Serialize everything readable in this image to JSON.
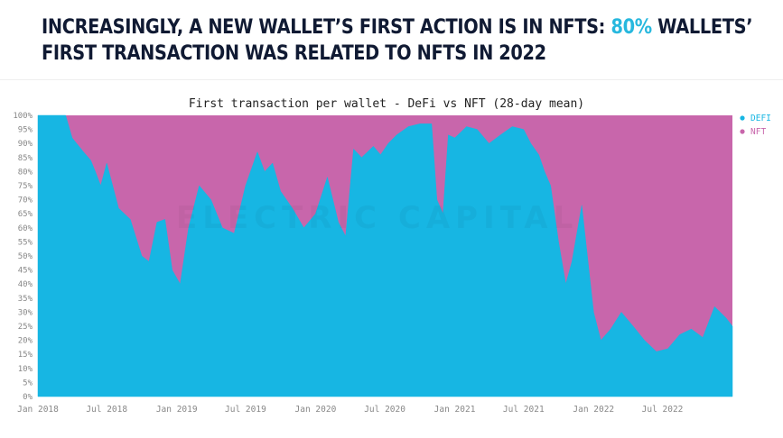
{
  "headline": {
    "line1_prefix": "INCREASINGLY, A NEW WALLET’S FIRST ACTION IS IN NFTS: ",
    "line1_accent": "80%",
    "line1_suffix": " WALLETS’",
    "line2": "FIRST TRANSACTION WAS RELATED TO NFTS IN 2022"
  },
  "watermark": "ELECTRIC CAPITAL",
  "colors": {
    "defi": "#17b6e3",
    "nft": "#c866ab",
    "accent": "#27b8de",
    "text": "#101a33"
  },
  "chart_data": {
    "type": "area",
    "title": "First transaction per wallet - DeFi vs NFT (28-day mean)",
    "stacked_percent": true,
    "ylim": [
      0,
      100
    ],
    "y_ticks": [
      "0%",
      "5%",
      "10%",
      "15%",
      "20%",
      "25%",
      "30%",
      "35%",
      "40%",
      "45%",
      "50%",
      "55%",
      "60%",
      "65%",
      "70%",
      "75%",
      "80%",
      "85%",
      "90%",
      "95%",
      "100%"
    ],
    "x_ticks": [
      "Jan 2018",
      "Jul 2018",
      "Jan 2019",
      "Jul 2019",
      "Jan 2020",
      "Jul 2020",
      "Jan 2021",
      "Jul 2021",
      "Jan 2022",
      "Jul 2022"
    ],
    "grid": false,
    "legend_position": "top-right",
    "series": [
      {
        "name": "DEFI",
        "color": "#17b6e3"
      },
      {
        "name": "NFT",
        "color": "#c866ab"
      }
    ],
    "defi_share": {
      "dates": [
        "2018-01-01",
        "2018-03-15",
        "2018-04-01",
        "2018-05-01",
        "2018-05-20",
        "2018-06-01",
        "2018-06-15",
        "2018-07-01",
        "2018-08-01",
        "2018-09-01",
        "2018-10-01",
        "2018-10-20",
        "2018-11-10",
        "2018-12-01",
        "2018-12-20",
        "2019-01-10",
        "2019-02-01",
        "2019-03-01",
        "2019-04-01",
        "2019-05-01",
        "2019-06-01",
        "2019-07-01",
        "2019-08-01",
        "2019-08-20",
        "2019-09-10",
        "2019-10-01",
        "2019-11-01",
        "2019-12-01",
        "2020-01-01",
        "2020-02-01",
        "2020-03-01",
        "2020-03-20",
        "2020-04-10",
        "2020-05-01",
        "2020-06-01",
        "2020-06-20",
        "2020-07-10",
        "2020-08-01",
        "2020-09-01",
        "2020-10-01",
        "2020-10-15",
        "2020-11-01",
        "2020-11-15",
        "2020-12-01",
        "2020-12-15",
        "2021-01-01",
        "2021-02-01",
        "2021-03-01",
        "2021-04-01",
        "2021-05-01",
        "2021-06-01",
        "2021-07-01",
        "2021-07-20",
        "2021-08-10",
        "2021-08-25",
        "2021-09-10",
        "2021-10-01",
        "2021-10-20",
        "2021-11-05",
        "2021-12-01",
        "2022-01-01",
        "2022-01-20",
        "2022-02-15",
        "2022-03-15",
        "2022-04-15",
        "2022-05-15",
        "2022-06-15",
        "2022-07-15",
        "2022-08-15",
        "2022-09-15",
        "2022-10-15",
        "2022-11-15",
        "2022-12-15",
        "2023-01-01"
      ],
      "values": [
        100,
        100,
        92,
        87,
        84,
        80,
        75,
        83,
        67,
        63,
        50,
        48,
        62,
        63,
        45,
        40,
        60,
        75,
        70,
        60,
        58,
        75,
        87,
        80,
        83,
        73,
        67,
        60,
        65,
        78,
        62,
        57,
        88,
        85,
        89,
        86,
        90,
        93,
        96,
        97,
        97,
        97,
        70,
        65,
        93,
        92,
        96,
        95,
        90,
        93,
        96,
        95,
        90,
        86,
        80,
        75,
        55,
        40,
        48,
        68,
        30,
        20,
        24,
        30,
        25,
        20,
        16,
        17,
        22,
        24,
        21,
        32,
        28,
        25
      ]
    },
    "nft_share_note": "NFT share is 100% minus DeFi share"
  }
}
